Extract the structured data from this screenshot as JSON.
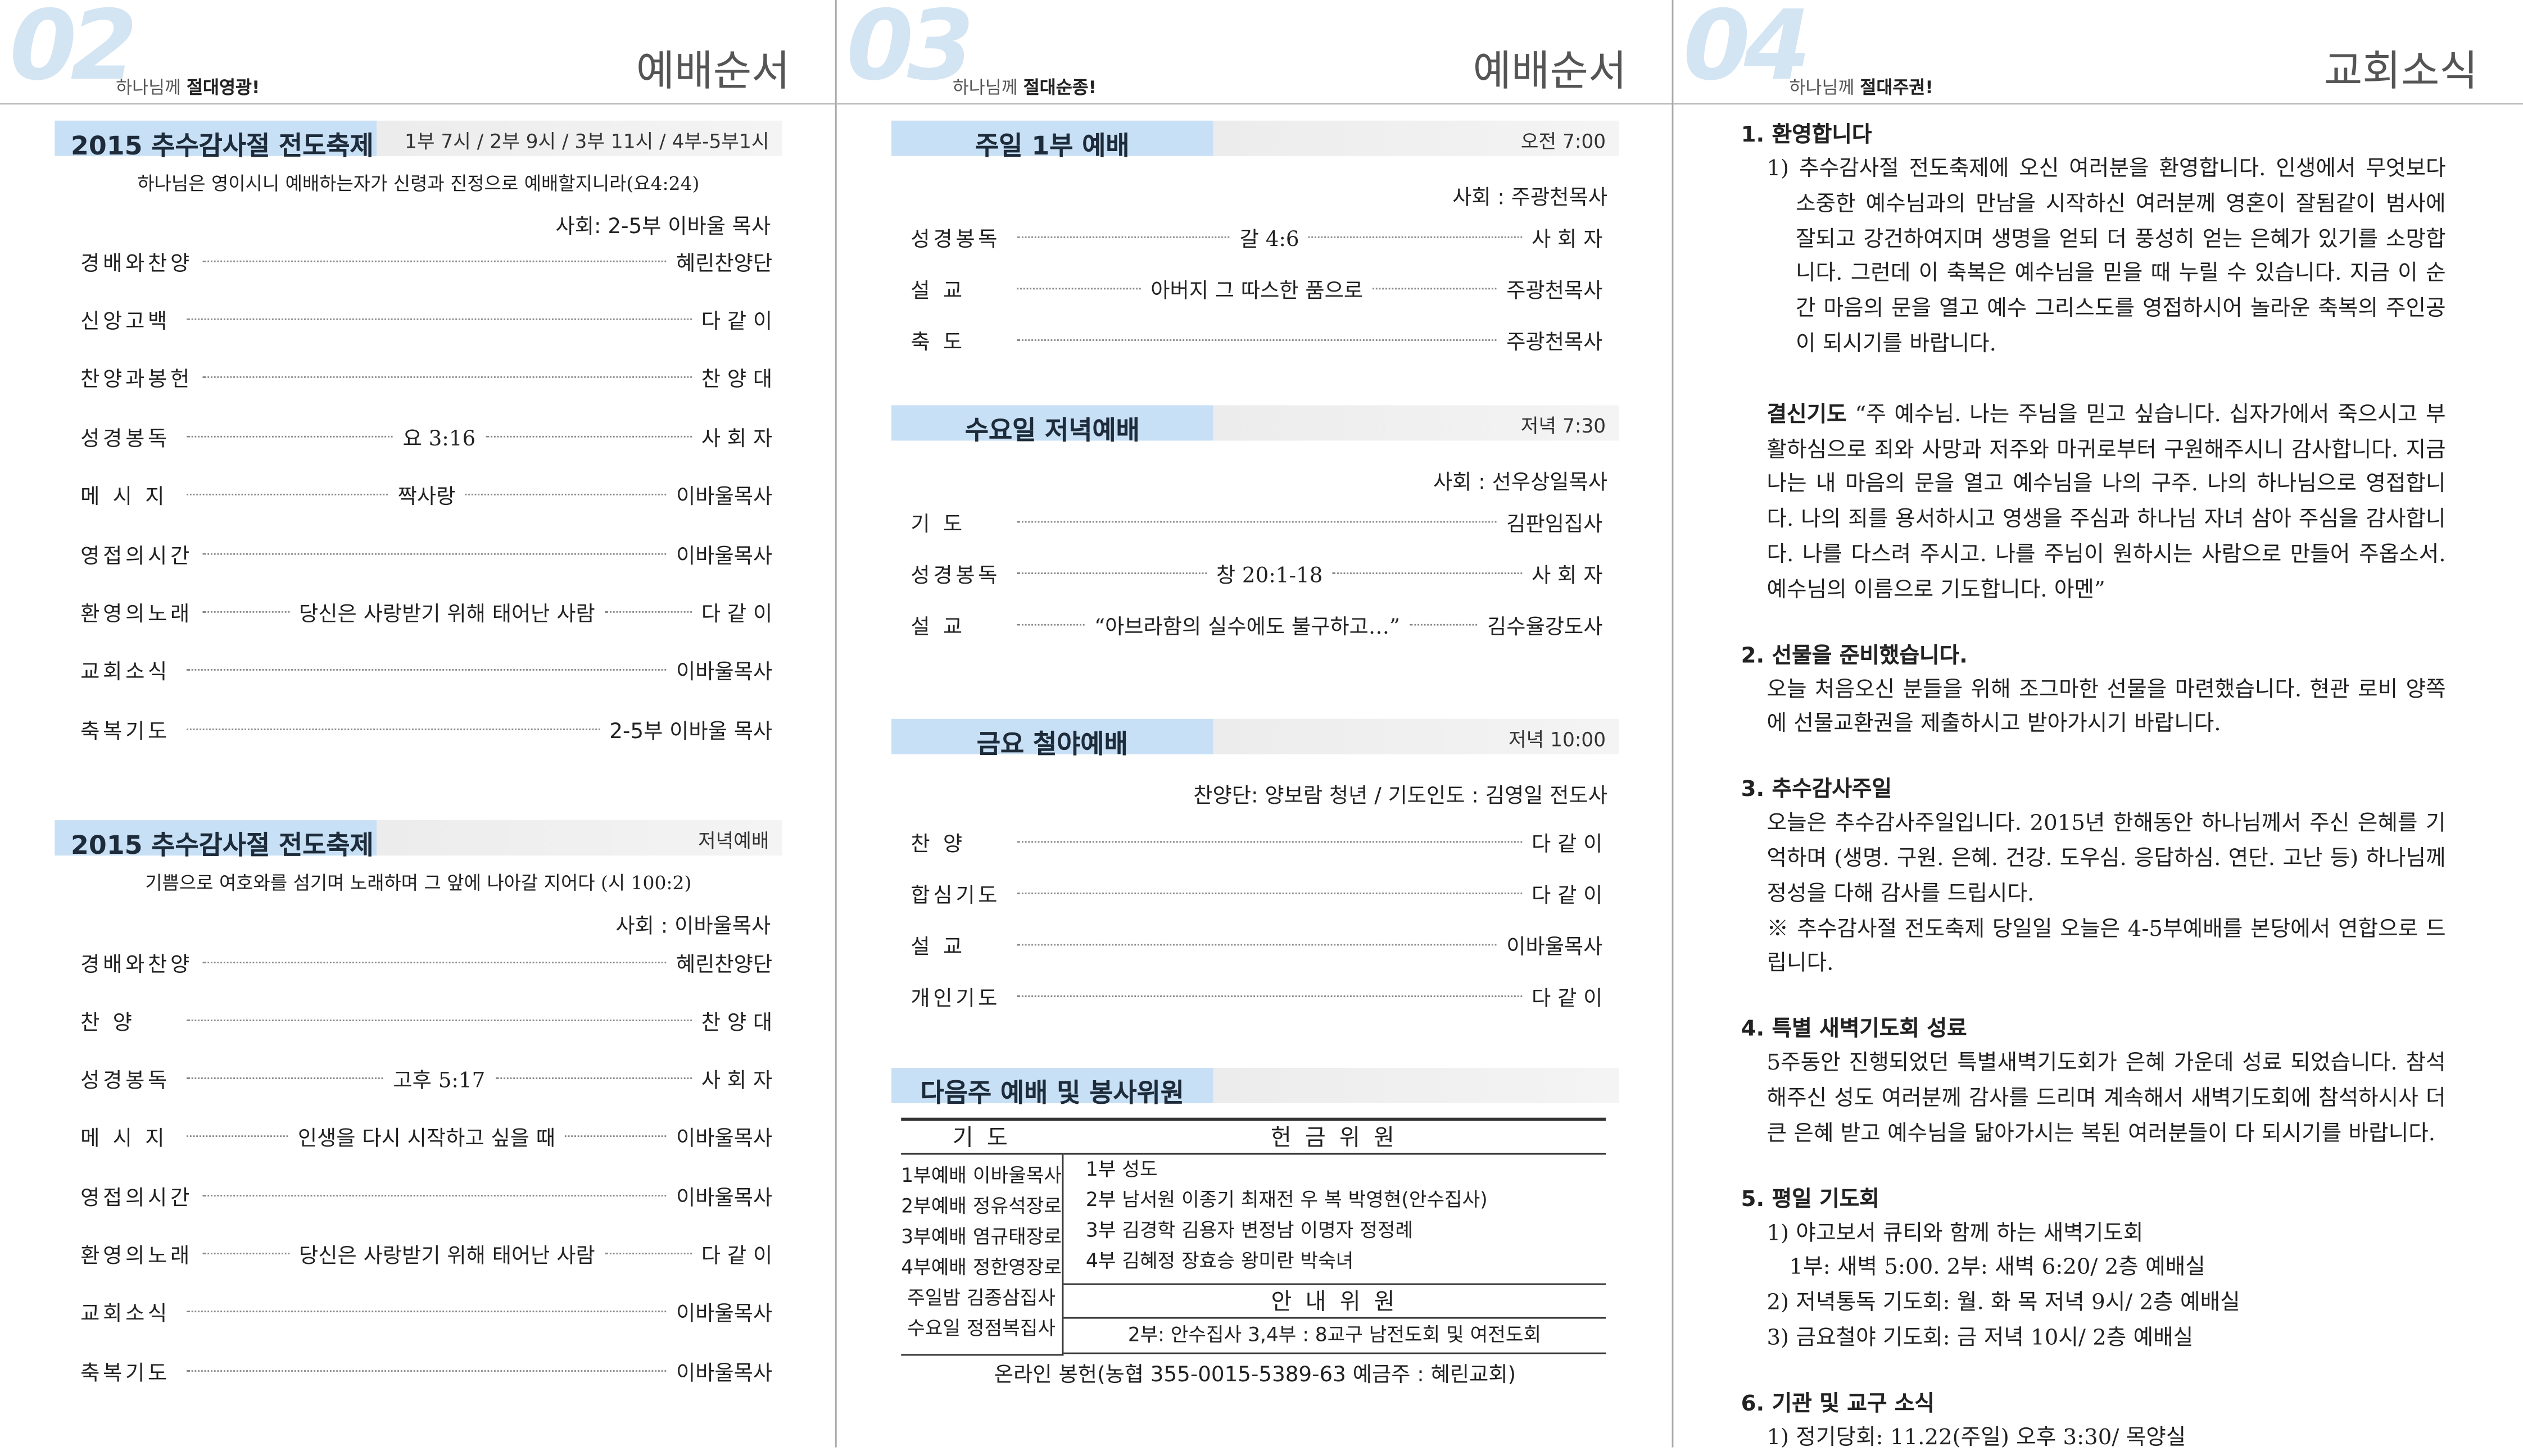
{
  "pages": [
    {
      "number": "02",
      "motto_prefix": "하나님께",
      "motto": "절대영광!",
      "title": "예배순서",
      "sections": [
        {
          "heading": "2015 추수감사절 전도축제",
          "time": "1부 7시 / 2부 9시 / 3부 11시 / 4부-5부1시",
          "verse": "하나님은 영이시니 예배하는자가 신령과 진정으로 예배할지니라(요4:24)",
          "presider": "사회: 2-5부 이바울 목사",
          "rows": [
            {
              "label": "경배와찬양",
              "right": "혜린찬양단"
            },
            {
              "label": "신앙고백",
              "right": "다 같 이"
            },
            {
              "label": "찬양과봉헌",
              "right": "찬 양 대"
            },
            {
              "label": "성경봉독",
              "text": "요 3:16",
              "right": "사 회 자"
            },
            {
              "label": "메 시 지",
              "text": "짝사랑",
              "right": "이바울목사"
            },
            {
              "label": "영접의시간",
              "right": "이바울목사"
            },
            {
              "label": "환영의노래",
              "text": "당신은 사랑받기 위해 태어난 사람",
              "right": "다 같 이"
            },
            {
              "label": "교회소식",
              "right": "이바울목사"
            },
            {
              "label": "축복기도",
              "right": "2-5부 이바울 목사"
            }
          ]
        },
        {
          "heading": "2015 추수감사절 전도축제",
          "time": "저녁예배",
          "verse": "기쁨으로 여호와를 섬기며 노래하며 그 앞에 나아갈 지어다 (시 100:2)",
          "presider": "사회 : 이바울목사",
          "rows": [
            {
              "label": "경배와찬양",
              "right": "혜린찬양단"
            },
            {
              "label": "찬 양",
              "right": "찬 양 대"
            },
            {
              "label": "성경봉독",
              "text": "고후 5:17",
              "right": "사 회 자"
            },
            {
              "label": "메 시 지",
              "text": "인생을 다시 시작하고 싶을 때",
              "right": "이바울목사"
            },
            {
              "label": "영접의시간",
              "right": "이바울목사"
            },
            {
              "label": "환영의노래",
              "text": "당신은 사랑받기 위해 태어난 사람",
              "right": "다 같 이"
            },
            {
              "label": "교회소식",
              "right": "이바울목사"
            },
            {
              "label": "축복기도",
              "right": "이바울목사"
            }
          ]
        }
      ]
    },
    {
      "number": "03",
      "motto_prefix": "하나님께",
      "motto": "절대순종!",
      "title": "예배순서",
      "sections": [
        {
          "heading": "주일 1부 예배",
          "time": "오전 7:00",
          "presider": "사회 : 주광천목사",
          "rows": [
            {
              "label": "성경봉독",
              "text": "갈 4:6",
              "right": "사 회 자"
            },
            {
              "label": "설 교",
              "text": "아버지 그 따스한 품으로",
              "right": "주광천목사"
            },
            {
              "label": "축 도",
              "right": "주광천목사"
            }
          ]
        },
        {
          "heading": "수요일 저녁예배",
          "time": "저녁 7:30",
          "presider": "사회 : 선우상일목사",
          "rows": [
            {
              "label": "기 도",
              "right": "김판임집사"
            },
            {
              "label": "성경봉독",
              "text": "창 20:1-18",
              "right": "사 회 자"
            },
            {
              "label": "설 교",
              "text": "“아브라함의 실수에도 불구하고…”",
              "right": "김수율강도사"
            }
          ]
        },
        {
          "heading": "금요 철야예배",
          "time": "저녁 10:00",
          "presider": "찬양단: 양보람 청년 / 기도인도 : 김영일 전도사",
          "rows": [
            {
              "label": "찬 양",
              "right": "다 같 이"
            },
            {
              "label": "합심기도",
              "right": "다 같 이"
            },
            {
              "label": "설 교",
              "right": "이바울목사"
            },
            {
              "label": "개인기도",
              "right": "다 같 이"
            }
          ]
        },
        {
          "heading": "다음주 예배 및 봉사위원",
          "table": {
            "prayer_heading": "기 도",
            "prayer_rows": [
              [
                "1부예배",
                "이바울목사"
              ],
              [
                "2부예배",
                "정유석장로"
              ],
              [
                "3부예배",
                "염규태장로"
              ],
              [
                "4부예배",
                "정한영장로"
              ],
              [
                "주일밤",
                "김종삼집사"
              ],
              [
                "수요일",
                "정점복집사"
              ]
            ],
            "offering_heading": "헌 금 위 원",
            "offering_rows": [
              [
                "1부",
                "성도"
              ],
              [
                "2부",
                "남서원 이종기 최재전 우 복 박영현(안수집사)"
              ],
              [
                "3부",
                "김경학 김용자 변정남 이명자 정정례"
              ],
              [
                "4부",
                "김혜정 장효승 왕미란 박숙녀"
              ]
            ],
            "usher_heading": "안 내 위 원",
            "usher_text": "2부: 안수집사 3,4부 : 8교구 남전도회 및 여전도회"
          },
          "footer": "온라인 봉헌(농협 355-0015-5389-63 예금주 : 혜린교회)"
        }
      ]
    },
    {
      "number": "04",
      "motto_prefix": "하나님께",
      "motto": "절대주권!",
      "title": "교회소식",
      "notices": [
        {
          "title": "1. 환영합니다",
          "paragraphs": [
            "1) 추수감사절 전도축제에 오신 여러분을 환영합니다. 인생에서 무엇보다 소중한 예수님과의 만남을 시작하신 여러분께 영혼이 잘됨같이 범사에 잘되고 강건하여지며 생명을 얻되 더 풍성히 얻는 은혜가 있기를 소망합니다. 그런데 이 축복은 예수님을 믿을 때 누릴 수 있습니다. 지금 이 순간 마음의 문을 열고 예수 그리스도를 영접하시어 놀라운 축복의 주인공이 되시기를 바랍니다.",
            {
              "label": "결신기도",
              "text": "“주 예수님. 나는 주님을 믿고 싶습니다. 십자가에서 죽으시고 부활하심으로 죄와 사망과 저주와 마귀로부터 구원해주시니 감사합니다. 지금 나는 내 마음의 문을 열고 예수님을 나의 구주. 나의 하나님으로 영접합니다. 나의 죄를 용서하시고 영생을 주심과 하나님 자녀 삼아 주심을 감사합니다. 나를 다스려 주시고. 나를 주님이 원하시는 사람으로 만들어 주옵소서. 예수님의 이름으로 기도합니다. 아멘”"
            }
          ]
        },
        {
          "title": "2. 선물을 준비했습니다.",
          "paragraphs": [
            "오늘 처음오신 분들을 위해 조그마한 선물을 마련했습니다. 현관 로비 양쪽에 선물교환권을 제출하시고 받아가시기 바랍니다."
          ]
        },
        {
          "title": "3. 추수감사주일",
          "paragraphs": [
            "오늘은 추수감사주일입니다. 2015년 한해동안 하나님께서 주신 은혜를 기억하며 (생명. 구원. 은혜. 건강. 도우심. 응답하심. 연단. 고난 등) 하나님께 정성을 다해 감사를 드립시다.",
            "※ 추수감사절 전도축제 당일일 오늘은 4-5부예배를 본당에서 연합으로 드립니다."
          ]
        },
        {
          "title": "4. 특별 새벽기도회 성료",
          "paragraphs": [
            "5주동안 진행되었던 특별새벽기도회가 은혜 가운데 성료 되었습니다. 참석해주신 성도 여러분께 감사를 드리며 계속해서 새벽기도회에 참석하시사 더 큰 은혜 받고 예수님을 닮아가시는 복된 여러분들이 다 되시기를 바랍니다."
          ]
        },
        {
          "title": "5. 평일 기도회",
          "paragraphs": [
            "1) 야고보서 큐티와 함께 하는 새벽기도회",
            "1부: 새벽 5:00. 2부: 새벽 6:20/ 2층 예배실",
            "2) 저녁통독 기도회: 월. 화 목 저녁 9시/ 2층 예배실",
            "3) 금요철야 기도회: 금 저녁 10시/ 2층 예배실"
          ]
        },
        {
          "title": "6. 기관 및 교구 소식",
          "paragraphs": [
            "1) 정기당회: 11.22(주일) 오후 3:30/ 목양실"
          ]
        }
      ]
    }
  ]
}
